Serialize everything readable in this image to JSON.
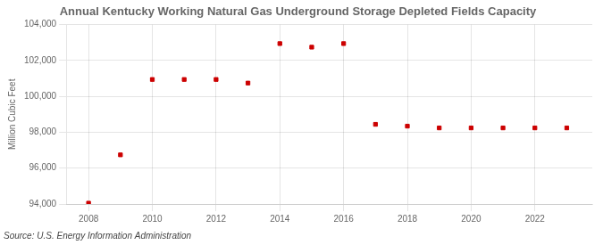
{
  "chart_data": {
    "type": "scatter",
    "title": "Annual Kentucky Working Natural Gas Underground Storage Depleted Fields Capacity",
    "ylabel": "Million Cubic Feet",
    "annotation": "Source: U.S. Energy Information Administration",
    "x": [
      2008,
      2009,
      2010,
      2011,
      2012,
      2013,
      2014,
      2015,
      2016,
      2017,
      2018,
      2019,
      2020,
      2021,
      2022,
      2023
    ],
    "values": [
      94048,
      96741,
      100941,
      100941,
      100941,
      100741,
      102941,
      102741,
      102941,
      98441,
      98341,
      98241,
      98241,
      98241,
      98241,
      98241
    ],
    "color": "#cc0000",
    "marker": "square",
    "xlim": [
      2007.3,
      2023.8
    ],
    "xticks": [
      2008,
      2010,
      2012,
      2014,
      2016,
      2018,
      2020,
      2022
    ],
    "ylim": [
      94000,
      104000
    ],
    "yticks": [
      {
        "value": 94000,
        "label": "94,000"
      },
      {
        "value": 96000,
        "label": "96,000"
      },
      {
        "value": 98000,
        "label": "98,000"
      },
      {
        "value": 100000,
        "label": "100,000"
      },
      {
        "value": 102000,
        "label": "102,000"
      },
      {
        "value": 104000,
        "label": "104,000"
      }
    ],
    "grid": true
  }
}
